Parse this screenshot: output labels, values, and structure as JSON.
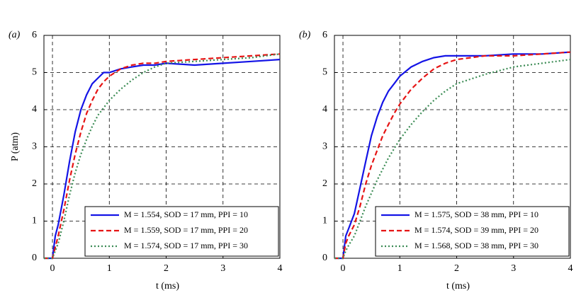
{
  "chart_data": [
    {
      "type": "line",
      "panel_label": "(a)",
      "y_label": "P (atm)",
      "x_label": "t (ms)",
      "xlim": [
        -0.15,
        4
      ],
      "ylim": [
        0,
        6
      ],
      "xticks": [
        0,
        1,
        2,
        3,
        4
      ],
      "yticks": [
        0,
        1,
        2,
        3,
        4,
        5,
        6
      ],
      "grid": true,
      "legend": "lower right",
      "x": [
        -0.15,
        0,
        0.05,
        0.1,
        0.2,
        0.3,
        0.4,
        0.5,
        0.6,
        0.7,
        0.8,
        0.9,
        1.0,
        1.2,
        1.4,
        1.6,
        1.8,
        2.0,
        2.5,
        3.0,
        3.5,
        4.0
      ],
      "series": [
        {
          "name": "M = 1.554, SOD = 17 mm, PPI = 10",
          "color": "#1414e6",
          "style": "solid",
          "values": [
            0,
            0,
            0.6,
            0.9,
            1.7,
            2.6,
            3.4,
            4.0,
            4.4,
            4.7,
            4.85,
            5.0,
            5.0,
            5.1,
            5.15,
            5.2,
            5.2,
            5.25,
            5.2,
            5.25,
            5.3,
            5.35
          ]
        },
        {
          "name": "M = 1.559, SOD = 17 mm, PPI = 20",
          "color": "#e61414",
          "style": "dashed",
          "values": [
            0,
            0,
            0.3,
            0.6,
            1.3,
            2.1,
            2.8,
            3.4,
            3.9,
            4.25,
            4.55,
            4.75,
            4.9,
            5.1,
            5.2,
            5.25,
            5.25,
            5.3,
            5.35,
            5.4,
            5.45,
            5.5
          ]
        },
        {
          "name": "M = 1.574, SOD = 17 mm, PPI = 30",
          "color": "#3c8c55",
          "style": "dotted",
          "values": [
            0,
            0,
            0.2,
            0.4,
            1.0,
            1.7,
            2.3,
            2.8,
            3.2,
            3.55,
            3.85,
            4.05,
            4.25,
            4.55,
            4.8,
            5.0,
            5.15,
            5.25,
            5.3,
            5.35,
            5.4,
            5.5
          ]
        }
      ]
    },
    {
      "type": "line",
      "panel_label": "(b)",
      "x_label": "t (ms)",
      "xlim": [
        -0.15,
        4
      ],
      "ylim": [
        0,
        6
      ],
      "xticks": [
        0,
        1,
        2,
        3,
        4
      ],
      "yticks": [
        0,
        1,
        2,
        3,
        4,
        5,
        6
      ],
      "grid": true,
      "legend": "lower right",
      "x": [
        -0.15,
        0,
        0.05,
        0.1,
        0.2,
        0.3,
        0.4,
        0.5,
        0.6,
        0.7,
        0.8,
        0.9,
        1.0,
        1.2,
        1.4,
        1.6,
        1.8,
        2.0,
        2.5,
        3.0,
        3.5,
        4.0
      ],
      "series": [
        {
          "name": "M = 1.575, SOD = 38 mm, PPI = 10",
          "color": "#1414e6",
          "style": "solid",
          "values": [
            0,
            0,
            0.6,
            0.8,
            1.2,
            1.9,
            2.6,
            3.3,
            3.8,
            4.2,
            4.5,
            4.7,
            4.9,
            5.15,
            5.3,
            5.4,
            5.45,
            5.45,
            5.45,
            5.5,
            5.5,
            5.55
          ]
        },
        {
          "name": "M = 1.574, SOD = 39 mm, PPI = 20",
          "color": "#e61414",
          "style": "dashed",
          "values": [
            0,
            0,
            0.4,
            0.6,
            0.9,
            1.4,
            2.0,
            2.5,
            2.9,
            3.3,
            3.6,
            3.9,
            4.15,
            4.55,
            4.85,
            5.1,
            5.25,
            5.35,
            5.45,
            5.45,
            5.5,
            5.55
          ]
        },
        {
          "name": "M = 1.568, SOD = 38 mm, PPI = 30",
          "color": "#3c8c55",
          "style": "dotted",
          "values": [
            0,
            0,
            0.2,
            0.35,
            0.6,
            1.0,
            1.4,
            1.75,
            2.1,
            2.4,
            2.7,
            2.95,
            3.2,
            3.6,
            3.95,
            4.25,
            4.5,
            4.7,
            4.95,
            5.15,
            5.25,
            5.35
          ]
        }
      ]
    }
  ]
}
